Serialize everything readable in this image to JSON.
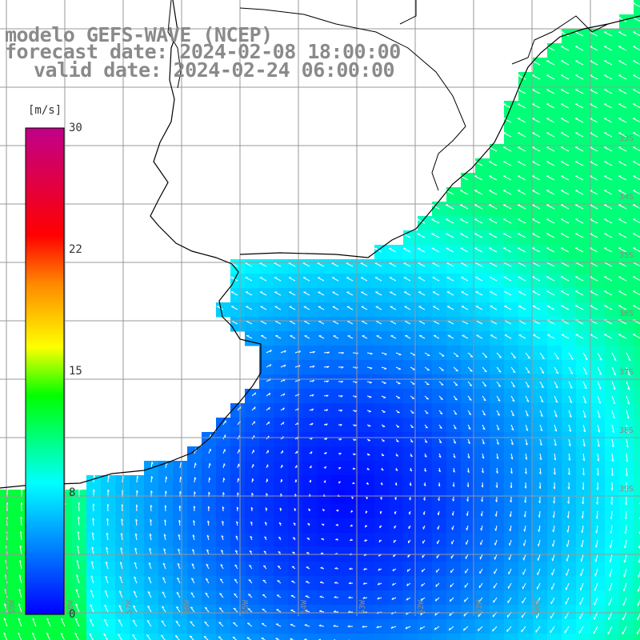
{
  "title": {
    "model": "modelo GEFS-WAVE (NCEP)",
    "forecast": "forecast date: 2024-02-08 18:00:00",
    "valid": "valid date: 2024-02-24 06:00:00"
  },
  "colorbar": {
    "unit": "[m/s]",
    "ticks": [
      "30",
      "22",
      "15",
      "8",
      "0"
    ],
    "colors": [
      "#0000ff",
      "#0088ff",
      "#00ffff",
      "#00ff00",
      "#ffff00",
      "#ff8800",
      "#ff0000",
      "#c0008a"
    ]
  },
  "axes": {
    "lat_labels": [
      "33S",
      "34S",
      "35S",
      "36S",
      "37S",
      "38S",
      "39S"
    ],
    "lon_labels": [
      "59W",
      "58W",
      "57W",
      "56W",
      "55W",
      "54W",
      "53W",
      "52W",
      "51W",
      "50W"
    ]
  },
  "colors": {
    "grid": "#999999",
    "coast": "#000000",
    "arrow": "#ffffff"
  }
}
